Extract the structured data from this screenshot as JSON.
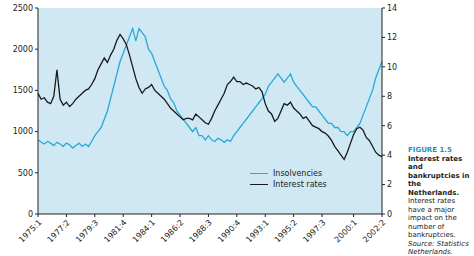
{
  "chart_data": {
    "type": "line",
    "title": "FIGURE 1.5",
    "subtitle": "Interest rates and bankruptcies in the Netherlands.",
    "annotations": [
      "Interest rates have a major impact on the number of bankruptcies.",
      "Source: Statistics Netherlands."
    ],
    "categories": [
      "1975:1",
      null,
      null,
      null,
      null,
      null,
      null,
      null,
      null,
      "1977:2",
      null,
      null,
      null,
      null,
      null,
      null,
      null,
      null,
      "1979:3",
      null,
      null,
      null,
      null,
      null,
      null,
      null,
      null,
      "1981:4",
      null,
      null,
      null,
      null,
      null,
      null,
      null,
      null,
      "1984:1",
      null,
      null,
      null,
      null,
      null,
      null,
      null,
      null,
      "1986:2",
      null,
      null,
      null,
      null,
      null,
      null,
      null,
      null,
      "1988:3",
      null,
      null,
      null,
      null,
      null,
      null,
      null,
      null,
      "1990:4",
      null,
      null,
      null,
      null,
      null,
      null,
      null,
      null,
      "1993:1",
      null,
      null,
      null,
      null,
      null,
      null,
      null,
      null,
      "1995:2",
      null,
      null,
      null,
      null,
      null,
      null,
      null,
      null,
      "1997:3",
      null,
      null,
      null,
      null,
      null,
      null,
      null,
      null,
      null,
      "2000:1",
      null,
      null,
      null,
      null,
      null,
      null,
      null,
      null,
      "2002:2"
    ],
    "series": [
      {
        "name": "Insolvencies",
        "color": "#29a9d6",
        "values": [
          900,
          870,
          850,
          880,
          860,
          830,
          870,
          850,
          820,
          860,
          840,
          800,
          830,
          860,
          820,
          850,
          820,
          880,
          950,
          1000,
          1050,
          1150,
          1250,
          1400,
          1550,
          1700,
          1850,
          1950,
          2050,
          2150,
          2250,
          2100,
          2250,
          2200,
          2150,
          2000,
          1950,
          1850,
          1750,
          1650,
          1550,
          1500,
          1400,
          1350,
          1250,
          1200,
          1150,
          1100,
          1050,
          1000,
          1050,
          950,
          950,
          900,
          950,
          900,
          880,
          920,
          900,
          870,
          900,
          880,
          950,
          1000,
          1050,
          1100,
          1150,
          1200,
          1250,
          1300,
          1350,
          1400,
          1450,
          1550,
          1600,
          1650,
          1700,
          1650,
          1600,
          1650,
          1700,
          1600,
          1550,
          1500,
          1450,
          1400,
          1350,
          1300,
          1300,
          1250,
          1200,
          1150,
          1100,
          1100,
          1050,
          1050,
          1000,
          1000,
          950,
          1000,
          1000,
          1050,
          1100,
          1200,
          1300,
          1400,
          1500,
          1650,
          1750,
          1850
        ]
      },
      {
        "name": "Interest rates",
        "color": "#1a1a1a",
        "axis": "y2",
        "values": [
          8.2,
          7.8,
          7.9,
          7.6,
          7.5,
          8.0,
          9.8,
          7.8,
          7.4,
          7.6,
          7.3,
          7.5,
          7.8,
          8.0,
          8.2,
          8.4,
          8.5,
          8.8,
          9.2,
          9.8,
          10.2,
          10.6,
          10.3,
          10.8,
          11.2,
          11.8,
          12.2,
          11.9,
          11.5,
          10.8,
          10.0,
          9.2,
          8.6,
          8.2,
          8.5,
          8.6,
          8.8,
          8.4,
          8.2,
          8.0,
          7.8,
          7.5,
          7.2,
          7.0,
          6.8,
          6.6,
          6.4,
          6.5,
          6.5,
          6.4,
          6.8,
          6.6,
          6.4,
          6.2,
          6.1,
          6.5,
          7.0,
          7.4,
          7.8,
          8.2,
          8.8,
          9.0,
          9.3,
          9.0,
          9.0,
          8.8,
          8.9,
          8.8,
          8.7,
          8.5,
          8.6,
          8.3,
          7.5,
          7.0,
          6.8,
          6.3,
          6.5,
          7.0,
          7.5,
          7.4,
          7.6,
          7.2,
          7.0,
          6.8,
          6.5,
          6.6,
          6.3,
          6.0,
          5.9,
          5.8,
          5.6,
          5.5,
          5.3,
          5.0,
          4.6,
          4.3,
          4.0,
          3.7,
          4.2,
          4.8,
          5.4,
          5.8,
          5.9,
          5.7,
          5.2,
          5.0,
          4.6,
          4.2,
          4.0,
          3.9
        ]
      }
    ],
    "ylim": [
      0,
      2500
    ],
    "yticks": [
      0,
      500,
      1000,
      1500,
      2000,
      2500
    ],
    "y2lim": [
      0,
      14
    ],
    "y2ticks": [
      0,
      2,
      4,
      6,
      8,
      10,
      12,
      14
    ],
    "grid": false,
    "legend": "lower right"
  }
}
